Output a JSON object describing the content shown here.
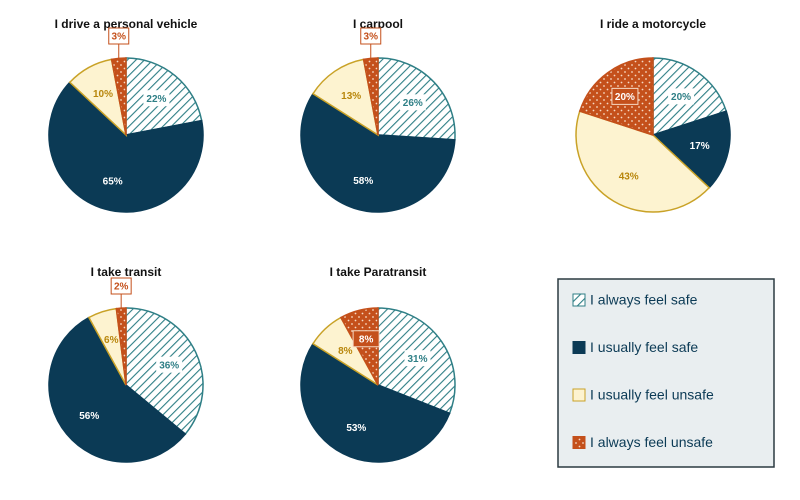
{
  "chart_data": [
    {
      "type": "pie",
      "title": "I drive a personal vehicle",
      "values": [
        22,
        65,
        10,
        3
      ],
      "value_labels": [
        "22%",
        "65%",
        "10%",
        "3%"
      ]
    },
    {
      "type": "pie",
      "title": "I carpool",
      "values": [
        26,
        58,
        13,
        3
      ],
      "value_labels": [
        "26%",
        "58%",
        "13%",
        "3%"
      ]
    },
    {
      "type": "pie",
      "title": "I ride a motorcycle",
      "values": [
        20,
        17,
        43,
        20
      ],
      "value_labels": [
        "20%",
        "17%",
        "43%",
        "20%"
      ]
    },
    {
      "type": "pie",
      "title": "I take transit",
      "values": [
        36,
        56,
        6,
        2
      ],
      "value_labels": [
        "36%",
        "56%",
        "6%",
        "2%"
      ]
    },
    {
      "type": "pie",
      "title": "I take Paratransit",
      "values": [
        31,
        53,
        8,
        8
      ],
      "value_labels": [
        "31%",
        "53%",
        "8%",
        "8%"
      ]
    }
  ],
  "legend": {
    "categories": [
      "I always feel safe",
      "I usually feel safe",
      "I usually feel unsafe",
      "I always feel unsafe"
    ],
    "colors": [
      "#2f7f86",
      "#0b3a55",
      "#fdf3d0",
      "#c4501b"
    ]
  }
}
